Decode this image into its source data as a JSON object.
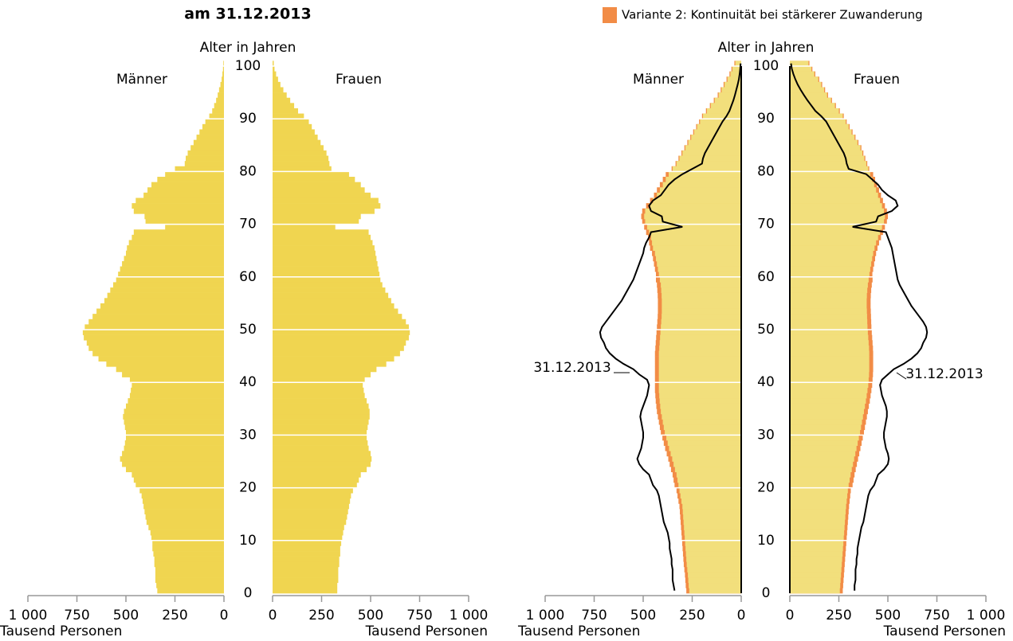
{
  "chart_data": [
    {
      "type": "pyramid",
      "title": "am 31.12.2013",
      "y_label": "Alter in Jahren",
      "x_label": "Tausend Personen",
      "side_labels": [
        "Männer",
        "Frauen"
      ],
      "ylim": [
        0,
        100
      ],
      "yticks": [
        0,
        10,
        20,
        30,
        40,
        50,
        60,
        70,
        80,
        90,
        100
      ],
      "xlim": [
        0,
        1000
      ],
      "xticks": [
        0,
        250,
        500,
        750,
        {
          "value": 1000,
          "label": "1 000"
        }
      ],
      "grid": true,
      "ages": [
        0,
        1,
        2,
        3,
        4,
        5,
        6,
        7,
        8,
        9,
        10,
        11,
        12,
        13,
        14,
        15,
        16,
        17,
        18,
        19,
        20,
        21,
        22,
        23,
        24,
        25,
        26,
        27,
        28,
        29,
        30,
        31,
        32,
        33,
        34,
        35,
        36,
        37,
        38,
        39,
        40,
        41,
        42,
        43,
        44,
        45,
        46,
        47,
        48,
        49,
        50,
        51,
        52,
        53,
        54,
        55,
        56,
        57,
        58,
        59,
        60,
        61,
        62,
        63,
        64,
        65,
        66,
        67,
        68,
        69,
        70,
        71,
        72,
        73,
        74,
        75,
        76,
        77,
        78,
        79,
        80,
        81,
        82,
        83,
        84,
        85,
        86,
        87,
        88,
        89,
        90,
        91,
        92,
        93,
        94,
        95,
        96,
        97,
        98,
        99,
        100
      ],
      "series": [
        {
          "color": "#f0d550",
          "values_left": [
            340,
            345,
            350,
            350,
            350,
            355,
            355,
            360,
            365,
            365,
            370,
            375,
            385,
            395,
            400,
            405,
            410,
            415,
            420,
            430,
            450,
            460,
            470,
            500,
            520,
            530,
            520,
            510,
            505,
            500,
            500,
            505,
            510,
            515,
            510,
            500,
            490,
            480,
            475,
            470,
            480,
            520,
            550,
            600,
            640,
            670,
            690,
            700,
            715,
            720,
            710,
            690,
            670,
            650,
            630,
            610,
            595,
            580,
            565,
            550,
            540,
            530,
            520,
            510,
            500,
            495,
            485,
            470,
            460,
            300,
            400,
            405,
            460,
            470,
            450,
            410,
            390,
            370,
            340,
            300,
            250,
            200,
            195,
            185,
            170,
            155,
            140,
            125,
            110,
            95,
            75,
            60,
            50,
            40,
            32,
            25,
            18,
            12,
            8,
            5,
            3
          ],
          "values_right": [
            330,
            330,
            335,
            335,
            335,
            340,
            340,
            345,
            345,
            350,
            355,
            360,
            365,
            375,
            380,
            385,
            390,
            395,
            400,
            410,
            430,
            440,
            450,
            480,
            500,
            505,
            500,
            490,
            485,
            480,
            480,
            485,
            490,
            495,
            495,
            490,
            480,
            470,
            465,
            460,
            470,
            500,
            530,
            580,
            620,
            650,
            670,
            680,
            695,
            700,
            695,
            680,
            660,
            640,
            620,
            605,
            590,
            575,
            560,
            550,
            545,
            540,
            535,
            530,
            525,
            520,
            510,
            500,
            490,
            320,
            440,
            450,
            520,
            550,
            540,
            500,
            470,
            450,
            420,
            390,
            300,
            290,
            285,
            275,
            260,
            245,
            230,
            215,
            200,
            185,
            160,
            130,
            110,
            90,
            72,
            55,
            40,
            28,
            18,
            10,
            6
          ]
        }
      ]
    },
    {
      "type": "pyramid-projection",
      "y_label": "Alter in Jahren",
      "x_label": "Tausend Personen",
      "side_labels": [
        "Männer",
        "Frauen"
      ],
      "annotation": "31.12.2013",
      "outline": {
        "color": "#000000",
        "source": "chart_data.0.series.0"
      },
      "ylim": [
        0,
        100
      ],
      "yticks": [
        0,
        10,
        20,
        30,
        40,
        50,
        60,
        70,
        80,
        90,
        100
      ],
      "xlim": [
        0,
        1000
      ],
      "xticks": [
        0,
        250,
        500,
        750,
        {
          "value": 1000,
          "label": "1 000"
        }
      ],
      "grid": true,
      "ages": [
        0,
        1,
        2,
        3,
        4,
        5,
        6,
        7,
        8,
        9,
        10,
        11,
        12,
        13,
        14,
        15,
        16,
        17,
        18,
        19,
        20,
        21,
        22,
        23,
        24,
        25,
        26,
        27,
        28,
        29,
        30,
        31,
        32,
        33,
        34,
        35,
        36,
        37,
        38,
        39,
        40,
        41,
        42,
        43,
        44,
        45,
        46,
        47,
        48,
        49,
        50,
        51,
        52,
        53,
        54,
        55,
        56,
        57,
        58,
        59,
        60,
        61,
        62,
        63,
        64,
        65,
        66,
        67,
        68,
        69,
        70,
        71,
        72,
        73,
        74,
        75,
        76,
        77,
        78,
        79,
        80,
        81,
        82,
        83,
        84,
        85,
        86,
        87,
        88,
        89,
        90,
        91,
        92,
        93,
        94,
        95,
        96,
        97,
        98,
        99,
        100
      ],
      "series": [
        {
          "name": "Variante 2: Kontinuität bei stärkerer Zuwanderung",
          "color": "#f28c46",
          "values_left": [
            280,
            283,
            285,
            287,
            290,
            293,
            295,
            297,
            299,
            301,
            303,
            305,
            307,
            309,
            311,
            313,
            315,
            320,
            325,
            330,
            340,
            345,
            350,
            358,
            365,
            372,
            380,
            388,
            395,
            402,
            410,
            415,
            420,
            425,
            430,
            433,
            436,
            438,
            440,
            440,
            440,
            440,
            440,
            440,
            440,
            440,
            438,
            436,
            434,
            432,
            430,
            428,
            426,
            425,
            425,
            425,
            426,
            428,
            430,
            435,
            435,
            440,
            445,
            450,
            455,
            465,
            470,
            475,
            485,
            495,
            505,
            510,
            505,
            485,
            465,
            445,
            430,
            415,
            400,
            385,
            355,
            335,
            320,
            305,
            290,
            275,
            260,
            245,
            230,
            215,
            200,
            180,
            160,
            140,
            120,
            105,
            90,
            75,
            60,
            50,
            35
          ],
          "values_right": [
            270,
            272,
            274,
            276,
            278,
            280,
            282,
            284,
            286,
            288,
            290,
            292,
            294,
            296,
            298,
            300,
            302,
            305,
            308,
            311,
            320,
            325,
            330,
            336,
            342,
            348,
            354,
            360,
            366,
            372,
            378,
            383,
            388,
            393,
            398,
            403,
            408,
            412,
            416,
            420,
            422,
            424,
            425,
            425,
            425,
            425,
            424,
            422,
            420,
            418,
            416,
            415,
            414,
            413,
            412,
            412,
            413,
            415,
            418,
            422,
            421,
            425,
            430,
            435,
            440,
            447,
            455,
            465,
            475,
            485,
            495,
            500,
            495,
            485,
            475,
            465,
            455,
            445,
            435,
            425,
            405,
            395,
            385,
            375,
            365,
            350,
            335,
            320,
            305,
            290,
            275,
            255,
            235,
            215,
            195,
            180,
            165,
            150,
            130,
            115,
            100
          ]
        },
        {
          "color": "#f2df7c",
          "values_left": [
            265,
            268,
            270,
            272,
            275,
            278,
            280,
            282,
            284,
            286,
            288,
            290,
            292,
            294,
            296,
            298,
            300,
            305,
            310,
            315,
            320,
            325,
            330,
            338,
            345,
            352,
            360,
            368,
            375,
            382,
            390,
            395,
            400,
            405,
            410,
            413,
            416,
            418,
            420,
            420,
            420,
            420,
            420,
            420,
            420,
            420,
            418,
            416,
            414,
            412,
            410,
            408,
            406,
            405,
            405,
            405,
            406,
            408,
            410,
            415,
            420,
            425,
            430,
            435,
            440,
            450,
            455,
            460,
            470,
            480,
            490,
            495,
            490,
            470,
            450,
            430,
            415,
            400,
            385,
            370,
            350,
            330,
            315,
            300,
            285,
            270,
            255,
            240,
            225,
            210,
            195,
            175,
            155,
            135,
            115,
            100,
            85,
            70,
            55,
            45,
            30
          ],
          "values_right": [
            255,
            257,
            259,
            261,
            263,
            265,
            267,
            269,
            271,
            273,
            275,
            277,
            279,
            281,
            283,
            285,
            287,
            290,
            293,
            296,
            300,
            305,
            310,
            316,
            322,
            328,
            334,
            340,
            346,
            352,
            358,
            363,
            368,
            373,
            378,
            383,
            388,
            392,
            396,
            400,
            402,
            404,
            405,
            405,
            405,
            405,
            404,
            402,
            400,
            398,
            396,
            395,
            394,
            393,
            392,
            392,
            393,
            395,
            398,
            402,
            406,
            410,
            415,
            420,
            425,
            432,
            440,
            450,
            460,
            470,
            480,
            485,
            480,
            470,
            460,
            450,
            440,
            430,
            420,
            410,
            400,
            390,
            380,
            370,
            360,
            345,
            330,
            315,
            300,
            285,
            270,
            250,
            230,
            210,
            190,
            175,
            160,
            145,
            125,
            110,
            95
          ]
        }
      ]
    }
  ]
}
